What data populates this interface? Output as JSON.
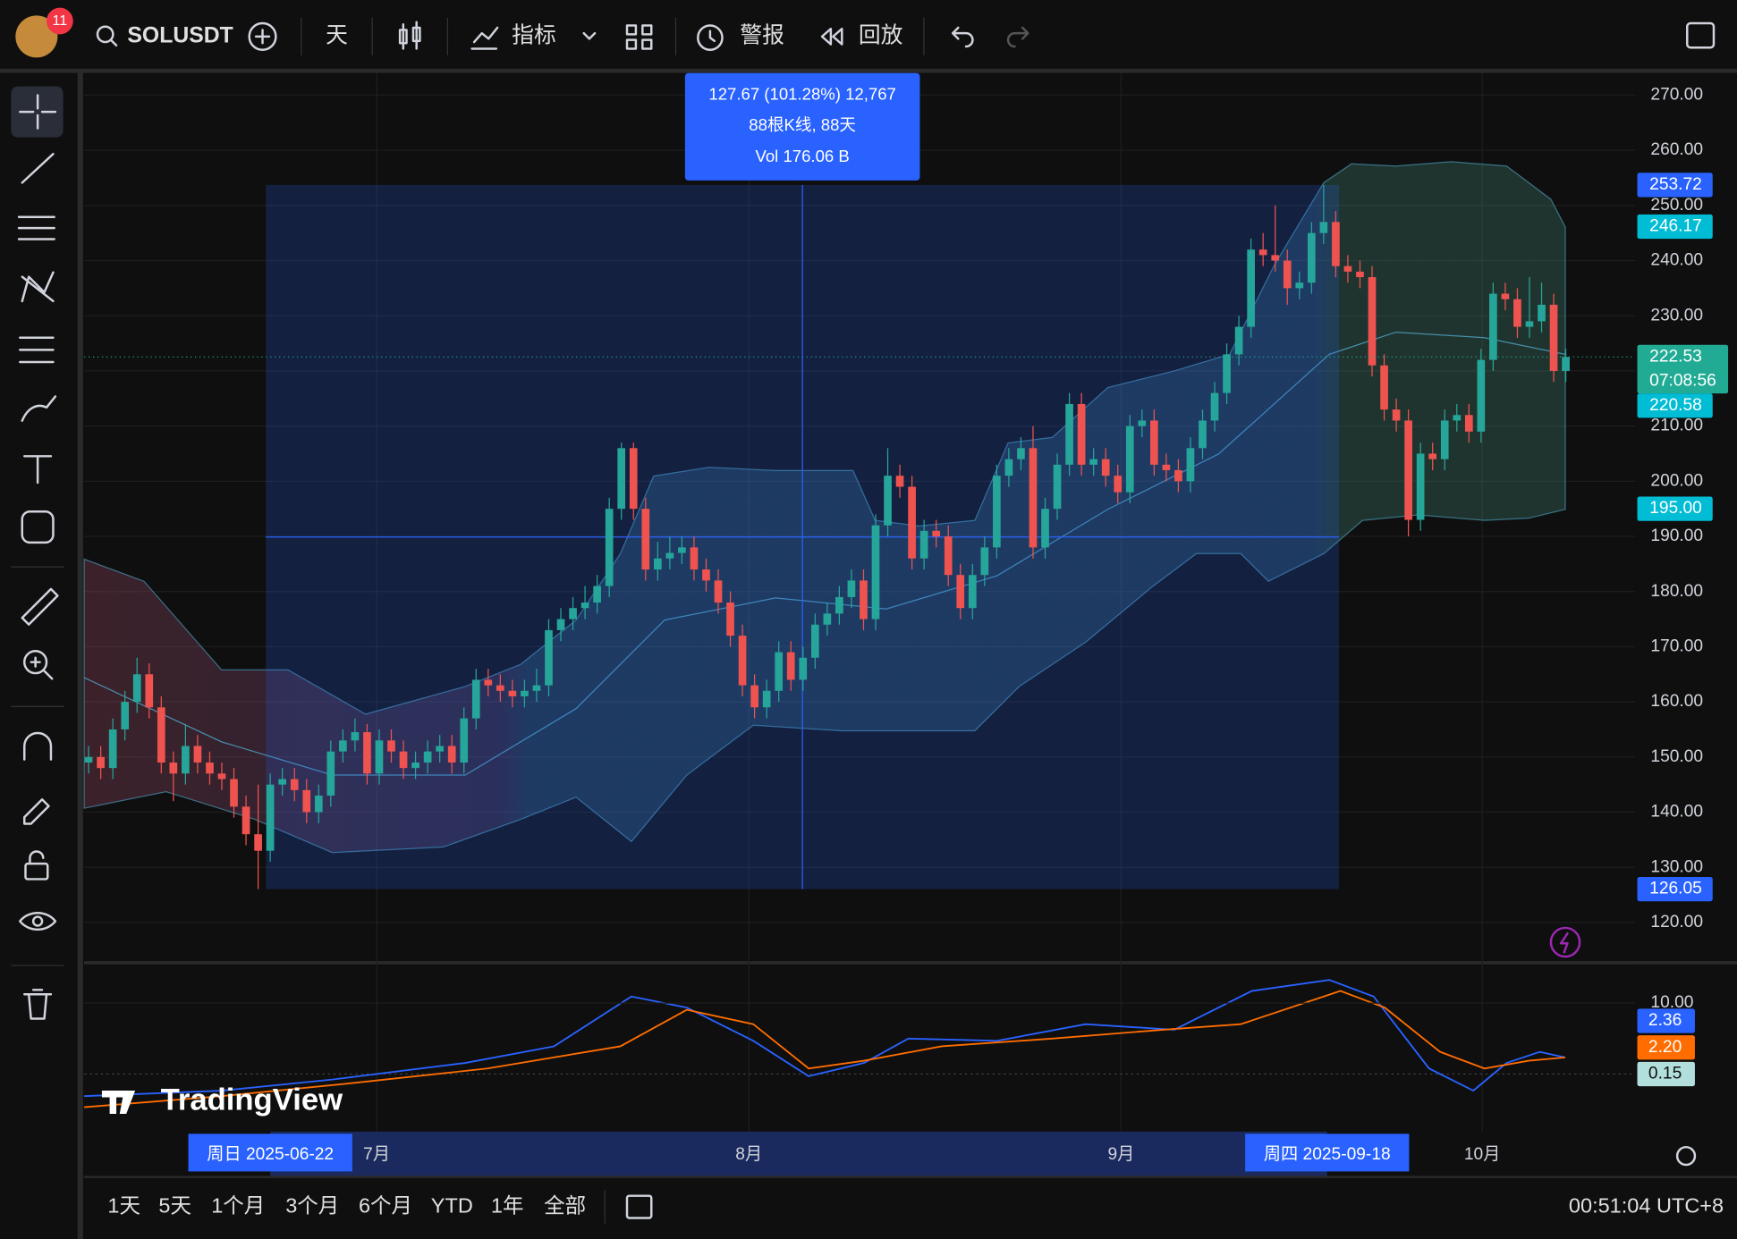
{
  "toolbar": {
    "badge": "11",
    "symbol": "SOLUSDT",
    "interval": "天",
    "indicators": "指标",
    "alerts": "警报",
    "replay": "回放"
  },
  "chart_data": {
    "type": "candlestick",
    "up_color": "#26a69a",
    "down_color": "#ef5350",
    "grid": true,
    "ylim": [
      113,
      274
    ],
    "yticks": [
      {
        "value": 120,
        "label": "120.00"
      },
      {
        "value": 130,
        "label": "130.00"
      },
      {
        "value": 140,
        "label": "140.00"
      },
      {
        "value": 150,
        "label": "150.00"
      },
      {
        "value": 160,
        "label": "160.00"
      },
      {
        "value": 170,
        "label": "170.00"
      },
      {
        "value": 180,
        "label": "180.00"
      },
      {
        "value": 190,
        "label": "190.00"
      },
      {
        "value": 200,
        "label": "200.00"
      },
      {
        "value": 210,
        "label": "210.00"
      },
      {
        "value": 220,
        "label": "220.00"
      },
      {
        "value": 230,
        "label": "230.00"
      },
      {
        "value": 240,
        "label": "240.00"
      },
      {
        "value": 250,
        "label": "250.00"
      },
      {
        "value": 260,
        "label": "260.00"
      },
      {
        "value": 270,
        "label": "270.00"
      }
    ],
    "open": [
      149,
      150,
      148,
      155,
      160,
      165,
      159,
      149,
      147,
      152,
      149,
      147,
      146,
      141,
      136,
      133,
      145,
      146,
      144,
      140,
      143,
      151,
      153,
      154.5,
      147,
      153,
      151,
      148,
      149,
      151,
      152,
      149,
      157,
      164,
      163,
      162,
      161,
      162,
      163,
      173,
      175,
      177,
      178,
      181,
      195,
      206,
      195,
      184,
      186,
      187,
      188,
      184,
      182,
      178,
      172,
      163,
      159,
      162,
      169,
      164,
      168,
      174,
      176,
      179,
      182,
      175,
      192,
      201,
      199,
      186,
      191,
      190,
      183,
      177,
      183,
      188,
      201,
      204,
      206,
      188,
      195,
      203,
      214,
      203,
      204,
      201,
      198,
      210,
      211,
      203,
      202,
      200,
      206,
      211,
      216,
      223,
      228,
      242,
      241,
      240,
      235,
      236,
      245,
      247,
      239,
      238,
      237,
      221,
      213,
      211,
      193,
      205,
      204,
      211,
      212,
      209,
      222,
      234,
      233,
      228,
      229,
      232,
      220
    ],
    "high": [
      152,
      152,
      157,
      162,
      168,
      167,
      161,
      151,
      156,
      154,
      151,
      149,
      148,
      143,
      145,
      147,
      148,
      148,
      146,
      145,
      153,
      155,
      157,
      156,
      155,
      155,
      153,
      151,
      153,
      154,
      154,
      159,
      166,
      166,
      165,
      164,
      164,
      166,
      175,
      177,
      179,
      181,
      183,
      197,
      207,
      207,
      197,
      189,
      190,
      190,
      190,
      186,
      184,
      180,
      174,
      165,
      164,
      171,
      171,
      170,
      176,
      178,
      181,
      184,
      184,
      194,
      206,
      203,
      201,
      193,
      193,
      192,
      185,
      185,
      190,
      203,
      206,
      208,
      210,
      197,
      205,
      216,
      216,
      206,
      206,
      203,
      212,
      213,
      213,
      205,
      204,
      208,
      213,
      218,
      225,
      230,
      244,
      245,
      250,
      242,
      238,
      247,
      253.72,
      249,
      241,
      240,
      239,
      223,
      215,
      213,
      207,
      207,
      213,
      214,
      214,
      224,
      236,
      236,
      235,
      237,
      236,
      234,
      224
    ],
    "low": [
      147,
      146,
      146,
      153,
      158,
      157,
      147,
      142,
      145,
      147,
      145,
      144,
      139,
      134,
      126.05,
      131,
      143,
      142,
      138,
      138,
      141,
      149,
      151,
      145,
      145,
      149,
      146,
      146,
      147,
      149,
      147,
      147,
      155,
      161,
      160,
      159,
      159,
      160,
      161,
      171,
      173,
      175,
      176,
      179,
      193,
      193,
      182,
      182,
      184,
      185,
      182,
      180,
      176,
      170,
      161,
      157,
      157,
      160,
      162,
      162,
      166,
      172,
      174,
      177,
      173,
      173,
      190,
      197,
      184,
      184,
      188,
      181,
      175,
      175,
      181,
      186,
      199,
      202,
      186,
      186,
      193,
      201,
      201,
      201,
      199,
      196,
      196,
      208,
      201,
      200,
      198,
      198,
      204,
      209,
      214,
      221,
      226,
      239,
      238,
      232,
      233,
      234,
      243,
      237,
      236,
      235,
      219,
      211,
      209,
      190,
      191,
      202,
      202,
      209,
      207,
      207,
      220,
      231,
      226,
      226,
      227,
      218,
      218
    ],
    "close": [
      150,
      148,
      155,
      160,
      165,
      159,
      149,
      147,
      152,
      149,
      147,
      146,
      141,
      136,
      133,
      145,
      146,
      144,
      140,
      143,
      151,
      153,
      154.5,
      147,
      153,
      151,
      148,
      149,
      151,
      152,
      149,
      157,
      164,
      163,
      162,
      161,
      162,
      163,
      173,
      175,
      177,
      178,
      181,
      195,
      206,
      195,
      184,
      186,
      187,
      188,
      184,
      182,
      178,
      172,
      163,
      159,
      162,
      169,
      164,
      168,
      174,
      176,
      179,
      182,
      175,
      192,
      201,
      199,
      186,
      191,
      190,
      183,
      177,
      183,
      188,
      201,
      204,
      206,
      188,
      195,
      203,
      214,
      203,
      204,
      201,
      198,
      210,
      211,
      203,
      202,
      200,
      206,
      211,
      216,
      223,
      228,
      242,
      241,
      240,
      235,
      236,
      245,
      247,
      239,
      238,
      237,
      221,
      213,
      211,
      193,
      205,
      204,
      211,
      212,
      209,
      222,
      234,
      233,
      228,
      229,
      232,
      220,
      222.53
    ],
    "price_tags": [
      {
        "value": 253.72,
        "color": "#2962ff"
      },
      {
        "value": 246.17,
        "color": "#00bcd4"
      },
      {
        "value": 222.53,
        "color": "#22ab94",
        "countdown": "07:08:56"
      },
      {
        "value": 220.58,
        "color": "#00bcd4"
      },
      {
        "value": 195,
        "label": "195.00",
        "color": "#00bcd4"
      },
      {
        "value": 126.05,
        "color": "#2962ff"
      }
    ],
    "measure": {
      "line1": "127.67 (101.28%) 12,767",
      "line2": "88根K线, 88天",
      "line3": "Vol 176.06 B"
    },
    "x_labels": [
      "7月",
      "8月",
      "9月",
      "10月"
    ],
    "crosshair_labels": [
      "周日 2025-06-22",
      "周四 2025-09-18"
    ],
    "macd": {
      "ylim": [
        -8.1,
        15.3
      ],
      "yticks": [
        {
          "value": 10,
          "label": "10.00"
        }
      ],
      "tags": [
        {
          "value": 2.36,
          "color": "#2962ff"
        },
        {
          "value": 2.2,
          "label": "2.20",
          "color": "#ff6d00"
        },
        {
          "value": 0.15,
          "color": "#b2dfdb"
        }
      ]
    }
  },
  "watermark": "TradingView",
  "bottom_bar": {
    "ranges": [
      "1天",
      "5天",
      "1个月",
      "3个月",
      "6个月",
      "YTD",
      "1年",
      "全部"
    ],
    "clock": "00:51:04 UTC+8"
  }
}
